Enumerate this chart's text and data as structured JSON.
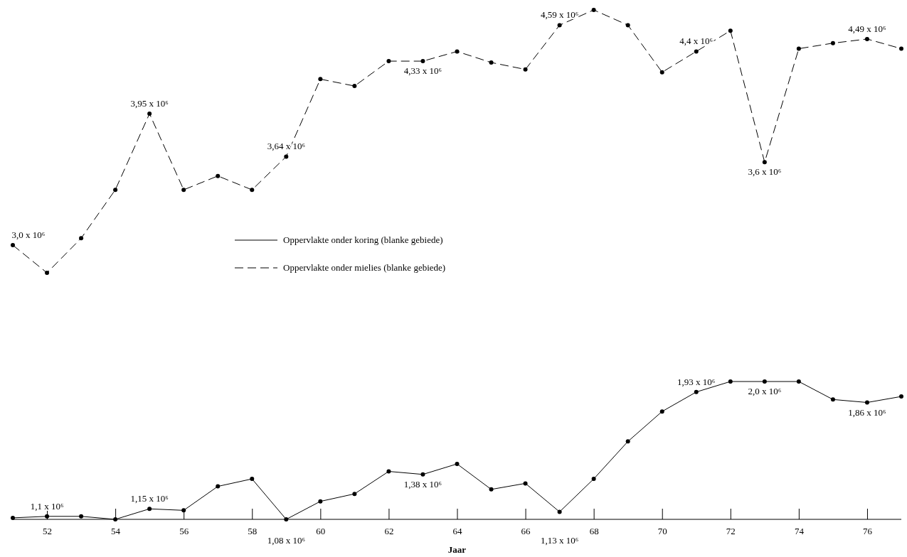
{
  "chart_data": [
    {
      "type": "line",
      "x": [
        51,
        52,
        53,
        54,
        55,
        56,
        57,
        58,
        59,
        60,
        61,
        62,
        63,
        64,
        65,
        66,
        67,
        68,
        69,
        70,
        71,
        72,
        73,
        74,
        75,
        76,
        77
      ],
      "tick_labels": false,
      "legend": "bottom",
      "marker": "circle",
      "series": [
        {
          "name": "Oppervlakte onder mielies (blanke gebiede)",
          "color": "#000000",
          "line_style": "dashed",
          "values": [
            3.0,
            2.8,
            3.05,
            3.4,
            3.95,
            3.4,
            3.5,
            3.4,
            3.64,
            4.2,
            4.15,
            4.33,
            4.33,
            4.4,
            4.32,
            4.27,
            4.59,
            4.7,
            4.59,
            4.25,
            4.4,
            4.55,
            3.6,
            4.42,
            4.46,
            4.49,
            4.42
          ],
          "value_labels": [
            "3,0 x 10⁶",
            null,
            null,
            null,
            "3,95 x 10⁶",
            null,
            null,
            null,
            "3,64 x 10⁶",
            null,
            null,
            null,
            "4,33 x 10⁶",
            null,
            null,
            null,
            "4,59 x 10⁶",
            null,
            null,
            null,
            "4,4 x 10⁶",
            null,
            "3,6 x 10⁶",
            null,
            null,
            "4,49 x 10⁶",
            null
          ]
        }
      ]
    },
    {
      "type": "line",
      "xlabel": "Jaar",
      "x": [
        51,
        52,
        53,
        54,
        55,
        56,
        57,
        58,
        59,
        60,
        61,
        62,
        63,
        64,
        65,
        66,
        67,
        68,
        69,
        70,
        71,
        72,
        73,
        74,
        75,
        76,
        77
      ],
      "xlim": [
        51,
        77
      ],
      "xticks": [
        52,
        54,
        56,
        58,
        60,
        62,
        64,
        66,
        68,
        70,
        72,
        74,
        76
      ],
      "tick_labels": "x",
      "legend": "top",
      "marker": "circle",
      "series": [
        {
          "name": "Oppervlakte onder koring (blanke gebiede)",
          "color": "#000000",
          "line_style": "solid",
          "values": [
            1.09,
            1.1,
            1.1,
            1.08,
            1.15,
            1.14,
            1.3,
            1.35,
            1.08,
            1.2,
            1.25,
            1.4,
            1.38,
            1.45,
            1.28,
            1.32,
            1.13,
            1.35,
            1.6,
            1.8,
            1.93,
            2.0,
            2.0,
            2.0,
            1.88,
            1.86,
            1.9
          ],
          "value_labels": [
            null,
            "1,1 x 10⁶",
            null,
            null,
            "1,15 x 10⁶",
            null,
            null,
            null,
            "1,08 x 10⁶",
            null,
            null,
            null,
            "1,38 x 10⁶",
            null,
            null,
            null,
            "1,13 x 10⁶",
            null,
            null,
            null,
            "1,93 x 10⁶",
            null,
            "2,0 x 10⁶",
            null,
            null,
            "1,86 x 10⁶",
            null
          ]
        }
      ]
    }
  ]
}
